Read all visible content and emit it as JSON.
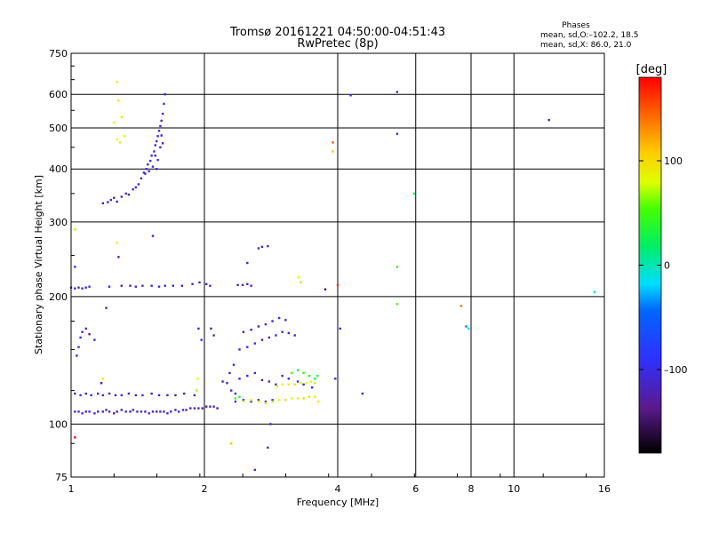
{
  "chart_data": {
    "type": "scatter",
    "title": "Tromsø 20161221 04:50:00-04:51:43",
    "subtitle": "RwPretec (8p)",
    "xlabel": "Frequency [MHz]",
    "ylabel": "Stationary phase Virtual Height [km]",
    "x_scale": "log2",
    "y_scale": "log",
    "xlim": [
      1,
      16
    ],
    "ylim": [
      75,
      750
    ],
    "x_ticks": [
      1,
      2,
      4,
      6,
      8,
      10,
      16
    ],
    "x_tick_labels": [
      "1",
      "2",
      "4",
      "6",
      "8",
      "10",
      "16"
    ],
    "y_ticks": [
      75,
      100,
      200,
      300,
      400,
      500,
      600,
      750
    ],
    "y_tick_labels": [
      "75",
      "100",
      "200",
      "300",
      "400",
      "500",
      "600",
      "750"
    ],
    "grid": true,
    "stats": {
      "heading": "Phases",
      "line_o": "mean, sd,O:–102.2, 18.5",
      "line_x": "mean, sd,X: 86.0, 21.0"
    },
    "colorbar": {
      "label": "[deg]",
      "range": [
        -180,
        180
      ],
      "ticks": [
        100,
        0,
        -100
      ],
      "tick_labels": [
        "100",
        "0",
        "–100"
      ]
    },
    "series": [
      {
        "points": [
          [
            1.02,
            107,
            -105
          ],
          [
            1.04,
            107,
            -110
          ],
          [
            1.06,
            106,
            -100
          ],
          [
            1.08,
            107,
            -115
          ],
          [
            1.1,
            107,
            -105
          ],
          [
            1.13,
            106,
            -110
          ],
          [
            1.15,
            107,
            -120
          ],
          [
            1.18,
            107,
            -108
          ],
          [
            1.2,
            108,
            -130
          ],
          [
            1.22,
            107,
            -112
          ],
          [
            1.25,
            106,
            -140
          ],
          [
            1.27,
            107,
            -110
          ],
          [
            1.3,
            108,
            -125
          ],
          [
            1.33,
            107,
            -105
          ],
          [
            1.36,
            107,
            -110
          ],
          [
            1.38,
            108,
            -120
          ],
          [
            1.41,
            107,
            -100
          ],
          [
            1.44,
            107,
            -108
          ],
          [
            1.47,
            107,
            -112
          ],
          [
            1.5,
            106,
            -105
          ],
          [
            1.53,
            107,
            -110
          ],
          [
            1.56,
            107,
            -108
          ],
          [
            1.59,
            107,
            -102
          ],
          [
            1.62,
            107,
            -110
          ],
          [
            1.65,
            106,
            -105
          ],
          [
            1.68,
            107,
            -115
          ],
          [
            1.72,
            108,
            -110
          ],
          [
            1.75,
            107,
            -100
          ],
          [
            1.79,
            108,
            -105
          ],
          [
            1.82,
            108,
            -120
          ],
          [
            1.86,
            109,
            -130
          ],
          [
            1.9,
            109,
            -125
          ],
          [
            1.94,
            109,
            -110
          ],
          [
            1.98,
            109,
            -130
          ],
          [
            2.02,
            110,
            -115
          ],
          [
            2.06,
            110,
            -125
          ],
          [
            2.1,
            110,
            -110
          ],
          [
            2.14,
            109,
            -140
          ],
          [
            1.02,
            118,
            -110
          ],
          [
            1.05,
            117,
            -100
          ],
          [
            1.08,
            118,
            -115
          ],
          [
            1.11,
            117,
            -108
          ],
          [
            1.15,
            118,
            -120
          ],
          [
            1.18,
            117,
            -105
          ],
          [
            1.22,
            118,
            -130
          ],
          [
            1.26,
            117,
            -110
          ],
          [
            1.3,
            117,
            -100
          ],
          [
            1.35,
            118,
            -120
          ],
          [
            1.4,
            117,
            -112
          ],
          [
            1.45,
            117,
            -104
          ],
          [
            1.52,
            118,
            -118
          ],
          [
            1.58,
            117,
            -108
          ],
          [
            1.65,
            117,
            -110
          ],
          [
            1.72,
            117,
            -122
          ],
          [
            1.8,
            118,
            -108
          ],
          [
            1.9,
            117,
            -112
          ],
          [
            1.03,
            145,
            -105
          ],
          [
            1.04,
            152,
            -110
          ],
          [
            1.05,
            160,
            -100
          ],
          [
            1.06,
            165,
            -120
          ],
          [
            1.08,
            168,
            -112
          ],
          [
            1.1,
            163,
            -140
          ],
          [
            1.13,
            158,
            -130
          ],
          [
            1.17,
            125,
            -140
          ],
          [
            1.0,
            210,
            -110
          ],
          [
            1.02,
            209,
            -105
          ],
          [
            1.04,
            210,
            -120
          ],
          [
            1.06,
            209,
            -108
          ],
          [
            1.08,
            210,
            -112
          ],
          [
            1.1,
            211,
            -100
          ],
          [
            1.22,
            211,
            -105
          ],
          [
            1.3,
            212,
            -110
          ],
          [
            1.36,
            212,
            -115
          ],
          [
            1.4,
            211,
            -108
          ],
          [
            1.45,
            212,
            -100
          ],
          [
            1.52,
            212,
            -112
          ],
          [
            1.58,
            211,
            -108
          ],
          [
            1.63,
            212,
            -105
          ],
          [
            1.7,
            212,
            -110
          ],
          [
            1.78,
            212,
            -112
          ],
          [
            1.88,
            214,
            -108
          ],
          [
            1.95,
            216,
            -115
          ],
          [
            2.02,
            214,
            -110
          ],
          [
            2.06,
            212,
            -105
          ],
          [
            2.38,
            213,
            -112
          ],
          [
            2.44,
            213,
            -105
          ],
          [
            2.5,
            214,
            -110
          ],
          [
            2.55,
            212,
            -100
          ],
          [
            3.75,
            208,
            -150
          ],
          [
            1.18,
            332,
            -125
          ],
          [
            1.21,
            334,
            -115
          ],
          [
            1.23,
            338,
            -130
          ],
          [
            1.25,
            342,
            -120
          ],
          [
            1.27,
            335,
            -110
          ],
          [
            1.3,
            344,
            -105
          ],
          [
            1.33,
            350,
            -115
          ],
          [
            1.35,
            348,
            -125
          ],
          [
            1.38,
            358,
            -110
          ],
          [
            1.4,
            362,
            -120
          ],
          [
            1.42,
            368,
            -100
          ],
          [
            1.44,
            380,
            -110
          ],
          [
            1.46,
            392,
            -105
          ],
          [
            1.48,
            400,
            -100
          ],
          [
            1.49,
            410,
            -110
          ],
          [
            1.51,
            418,
            -100
          ],
          [
            1.52,
            430,
            -105
          ],
          [
            1.54,
            440,
            -100
          ],
          [
            1.55,
            455,
            -105
          ],
          [
            1.56,
            465,
            -110
          ],
          [
            1.57,
            478,
            -100
          ],
          [
            1.58,
            492,
            -105
          ],
          [
            1.59,
            505,
            -100
          ],
          [
            1.6,
            520,
            -110
          ],
          [
            1.61,
            540,
            -105
          ],
          [
            1.62,
            570,
            -100
          ],
          [
            1.63,
            600,
            -110
          ],
          [
            1.47,
            390,
            -115
          ],
          [
            1.5,
            395,
            -105
          ],
          [
            1.53,
            405,
            -110
          ],
          [
            1.57,
            420,
            -100
          ],
          [
            1.59,
            450,
            -105
          ],
          [
            1.55,
            430,
            -115
          ],
          [
            1.6,
            480,
            -108
          ],
          [
            1.56,
            400,
            -100
          ],
          [
            1.61,
            460,
            -112
          ],
          [
            2.35,
            113,
            -105
          ],
          [
            2.45,
            114,
            -110
          ],
          [
            2.55,
            113,
            -108
          ],
          [
            2.65,
            114,
            -112
          ],
          [
            2.75,
            113,
            -100
          ],
          [
            2.85,
            114,
            -105
          ],
          [
            2.4,
            150,
            -110
          ],
          [
            2.5,
            152,
            -115
          ],
          [
            2.6,
            155,
            -105
          ],
          [
            2.7,
            158,
            -120
          ],
          [
            2.8,
            160,
            -110
          ],
          [
            2.9,
            162,
            -100
          ],
          [
            3.0,
            165,
            -115
          ],
          [
            3.1,
            164,
            -110
          ],
          [
            3.2,
            162,
            -120
          ],
          [
            2.45,
            165,
            -130
          ],
          [
            2.55,
            167,
            -120
          ],
          [
            2.65,
            170,
            -125
          ],
          [
            2.75,
            172,
            -110
          ],
          [
            2.85,
            175,
            -115
          ],
          [
            2.95,
            178,
            -105
          ],
          [
            3.05,
            176,
            -100
          ],
          [
            2.4,
            128,
            -108
          ],
          [
            2.5,
            130,
            -115
          ],
          [
            2.6,
            132,
            -105
          ],
          [
            2.7,
            127,
            -110
          ],
          [
            2.8,
            126,
            -100
          ],
          [
            2.9,
            124,
            -112
          ],
          [
            3.0,
            130,
            -108
          ],
          [
            3.1,
            128,
            -120
          ],
          [
            3.25,
            126,
            -105
          ],
          [
            3.35,
            124,
            -110
          ],
          [
            3.5,
            122,
            -100
          ],
          [
            2.25,
            125,
            -110
          ],
          [
            2.3,
            120,
            -120
          ],
          [
            2.35,
            118,
            -112
          ],
          [
            2.2,
            126,
            -115
          ],
          [
            2.28,
            132,
            -105
          ],
          [
            2.33,
            138,
            -110
          ],
          [
            2.7,
            262,
            -110
          ],
          [
            2.78,
            263,
            -105
          ],
          [
            2.65,
            260,
            -120
          ],
          [
            2.5,
            240,
            -115
          ],
          [
            1.94,
            168,
            -110
          ],
          [
            1.97,
            158,
            -105
          ],
          [
            2.07,
            168,
            -125
          ],
          [
            2.1,
            162,
            -110
          ],
          [
            1.02,
            235,
            -105
          ],
          [
            1.28,
            248,
            -130
          ],
          [
            1.2,
            188,
            -115
          ],
          [
            1.53,
            278,
            -105
          ],
          [
            3.95,
            128,
            -105
          ],
          [
            4.55,
            118,
            -115
          ],
          [
            4.28,
            597,
            -100
          ],
          [
            5.45,
            608,
            -110
          ],
          [
            5.45,
            484,
            -105
          ],
          [
            12.0,
            522,
            -140
          ],
          [
            2.6,
            78,
            -108
          ],
          [
            2.78,
            88,
            -110
          ],
          [
            4.05,
            168,
            -105
          ],
          [
            2.82,
            100,
            -120
          ]
        ]
      },
      {
        "points": [
          [
            2.45,
            113,
            80
          ],
          [
            2.55,
            114,
            75
          ],
          [
            2.65,
            113,
            85
          ],
          [
            2.75,
            112,
            90
          ],
          [
            2.85,
            113,
            70
          ],
          [
            2.95,
            114,
            80
          ],
          [
            3.05,
            114,
            95
          ],
          [
            3.15,
            115,
            78
          ],
          [
            3.25,
            115,
            85
          ],
          [
            3.35,
            115,
            100
          ],
          [
            3.45,
            116,
            72
          ],
          [
            3.55,
            116,
            88
          ],
          [
            3.62,
            113,
            92
          ],
          [
            2.92,
            123,
            90
          ],
          [
            3.0,
            124,
            80
          ],
          [
            3.1,
            124,
            88
          ],
          [
            3.2,
            124,
            95
          ],
          [
            3.3,
            125,
            78
          ],
          [
            3.4,
            125,
            82
          ],
          [
            3.48,
            126,
            85
          ],
          [
            3.55,
            125,
            75
          ],
          [
            3.15,
            132,
            50
          ],
          [
            3.25,
            134,
            30
          ],
          [
            3.35,
            132,
            45
          ],
          [
            3.45,
            130,
            40
          ],
          [
            3.55,
            128,
            20
          ],
          [
            3.6,
            130,
            35
          ],
          [
            2.35,
            115,
            50
          ],
          [
            2.4,
            116,
            30
          ],
          [
            1.27,
            642,
            85
          ],
          [
            1.28,
            580,
            90
          ],
          [
            1.3,
            530,
            75
          ],
          [
            1.25,
            515,
            80
          ],
          [
            1.27,
            470,
            80
          ],
          [
            1.29,
            462,
            85
          ],
          [
            1.32,
            478,
            78
          ],
          [
            1.02,
            288,
            70
          ],
          [
            1.27,
            268,
            82
          ],
          [
            1.92,
            120,
            70
          ],
          [
            1.93,
            128,
            80
          ],
          [
            1.18,
            128,
            85
          ],
          [
            3.26,
            222,
            80
          ],
          [
            3.3,
            216,
            70
          ],
          [
            3.9,
            462,
            150
          ],
          [
            3.9,
            440,
            110
          ],
          [
            5.45,
            235,
            45
          ],
          [
            5.45,
            192,
            55
          ],
          [
            5.95,
            350,
            20
          ],
          [
            7.6,
            190,
            140
          ],
          [
            7.8,
            170,
            -40
          ],
          [
            7.9,
            168,
            -20
          ],
          [
            4.0,
            213,
            160
          ],
          [
            15.2,
            205,
            -10
          ],
          [
            2.3,
            90,
            110
          ],
          [
            1.02,
            93,
            180
          ]
        ]
      }
    ]
  }
}
